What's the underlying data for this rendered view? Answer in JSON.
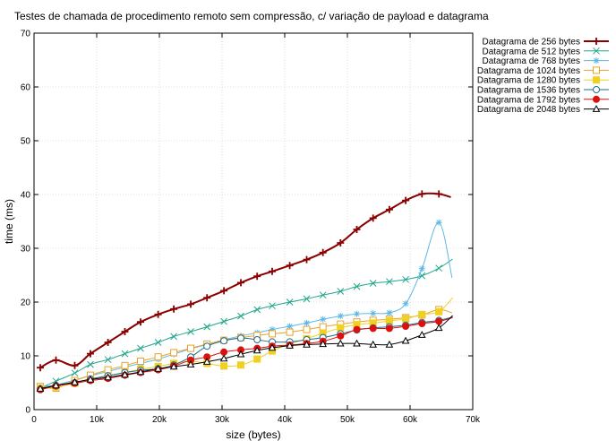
{
  "chart_data": {
    "type": "line",
    "title": "Testes de chamada de procedimento remoto sem compressão, c/ variação de payload e datagrama",
    "xlabel": "size (bytes)",
    "ylabel": "time (ms)",
    "xlim": [
      0,
      70000
    ],
    "ylim": [
      0,
      70
    ],
    "x_ticks": [
      0,
      10000,
      20000,
      30000,
      40000,
      50000,
      60000,
      70000
    ],
    "x_tick_labels": [
      "0",
      "10k",
      "20k",
      "30k",
      "40k",
      "50k",
      "60k",
      "70k"
    ],
    "y_ticks": [
      0,
      10,
      20,
      30,
      40,
      50,
      60,
      70
    ],
    "y_tick_labels": [
      "0",
      "10",
      "20",
      "30",
      "40",
      "50",
      "60",
      "70"
    ],
    "grid": true,
    "legend_position": "outside-right",
    "x": [
      1000,
      3500,
      6500,
      9000,
      11800,
      14500,
      17000,
      19800,
      22300,
      25000,
      27600,
      30300,
      33000,
      35600,
      38000,
      40800,
      43500,
      46100,
      48900,
      51500,
      54100,
      56700,
      59300,
      61900,
      64600
    ],
    "series": [
      {
        "name": "Datagrama de 256 bytes",
        "color": "#8b0000",
        "marker": "plus",
        "values": [
          7.8,
          9.2,
          8.2,
          10.4,
          12.5,
          14.5,
          16.3,
          17.7,
          18.7,
          19.6,
          20.8,
          22.1,
          23.6,
          24.8,
          25.7,
          26.8,
          27.9,
          29.2,
          31.0,
          33.5,
          35.6,
          37.2,
          38.9,
          40.1,
          40.1
        ],
        "end": [
          66500,
          39.5
        ]
      },
      {
        "name": "Datagrama de 512 bytes",
        "color": "#20a58a",
        "marker": "x",
        "values": [
          4.0,
          5.3,
          6.8,
          8.4,
          9.3,
          10.4,
          11.4,
          12.5,
          13.6,
          14.5,
          15.4,
          16.4,
          17.4,
          18.6,
          19.3,
          20.0,
          20.6,
          21.3,
          22.0,
          22.9,
          23.5,
          23.8,
          24.2,
          24.9,
          26.3
        ],
        "end": [
          66800,
          28.0
        ]
      },
      {
        "name": "Datagrama de 768 bytes",
        "color": "#5cb8e6",
        "marker": "star",
        "values": [
          4.2,
          4.6,
          5.5,
          6.3,
          7.1,
          7.9,
          8.6,
          9.4,
          10.3,
          11.3,
          12.1,
          13.0,
          13.7,
          14.3,
          14.9,
          15.5,
          16.1,
          16.8,
          17.4,
          17.8,
          17.9,
          18.0,
          19.7,
          26.2,
          34.8
        ],
        "end": [
          66700,
          24.5
        ]
      },
      {
        "name": "Datagrama de 1024 bytes",
        "color": "#e8a22a",
        "marker": "square",
        "values": [
          4.3,
          4.0,
          5.4,
          6.4,
          7.4,
          8.2,
          9.0,
          9.8,
          10.6,
          11.4,
          12.2,
          12.9,
          13.4,
          13.8,
          14.1,
          14.4,
          14.9,
          15.4,
          15.9,
          16.3,
          16.6,
          16.8,
          17.1,
          17.6,
          18.6
        ],
        "end": [
          66700,
          18.0
        ]
      },
      {
        "name": "Datagrama de 1280 bytes",
        "color": "#f0d020",
        "marker": "filled-square",
        "values": [
          4.0,
          4.2,
          4.9,
          5.6,
          6.3,
          6.9,
          7.5,
          8.0,
          8.6,
          9.0,
          8.6,
          8.1,
          8.3,
          9.4,
          10.9,
          12.2,
          13.2,
          14.2,
          15.2,
          15.8,
          16.1,
          16.5,
          16.9,
          17.7,
          18.2
        ],
        "end": [
          66800,
          20.8
        ]
      },
      {
        "name": "Datagrama de 1536 bytes",
        "color": "#1f6b8f",
        "marker": "circle",
        "values": [
          3.8,
          4.4,
          5.0,
          5.7,
          6.3,
          6.9,
          7.3,
          7.6,
          8.3,
          9.8,
          11.8,
          12.8,
          13.3,
          13.0,
          12.6,
          12.6,
          13.0,
          13.4,
          14.1,
          14.8,
          15.2,
          15.4,
          15.7,
          16.2,
          16.6
        ],
        "end": [
          66800,
          17.2
        ]
      },
      {
        "name": "Datagrama de 1792 bytes",
        "color": "#dd1010",
        "marker": "filled-circle",
        "values": [
          3.7,
          4.4,
          4.9,
          5.4,
          5.8,
          6.4,
          6.9,
          7.4,
          8.1,
          9.2,
          9.8,
          10.7,
          11.1,
          11.4,
          11.8,
          12.0,
          12.3,
          12.7,
          13.7,
          14.9,
          15.1,
          15.1,
          15.5,
          16.0,
          16.4
        ],
        "end": [
          66800,
          17.1
        ]
      },
      {
        "name": "Datagrama de 2048 bytes",
        "color": "#000000",
        "marker": "triangle",
        "values": [
          3.9,
          4.5,
          5.1,
          5.6,
          6.0,
          6.5,
          7.0,
          7.6,
          8.0,
          8.4,
          8.9,
          9.5,
          10.3,
          11.0,
          11.5,
          11.9,
          12.1,
          12.2,
          12.3,
          12.3,
          12.1,
          12.1,
          12.8,
          13.9,
          15.2
        ],
        "end": [
          66800,
          17.5
        ]
      }
    ]
  }
}
